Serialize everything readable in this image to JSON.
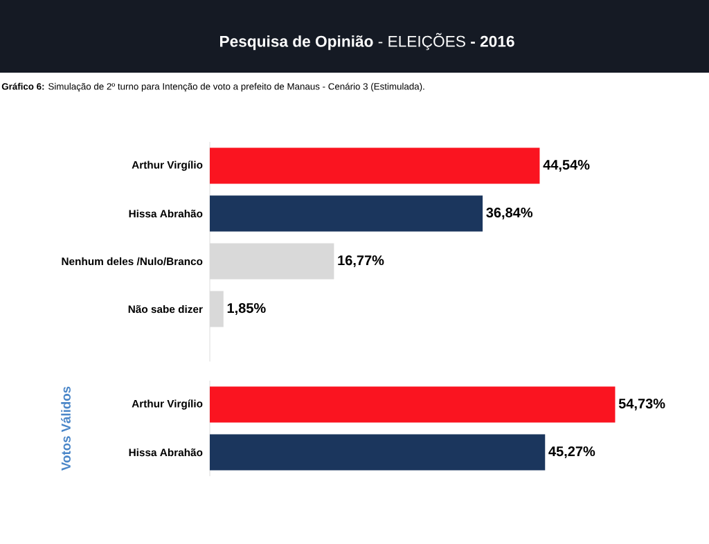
{
  "chart_data": [
    {
      "type": "bar",
      "orientation": "horizontal",
      "title": "**Pesquisa de Opinião** - ELEIÇÕES **- 2016**",
      "subtitle": "**Gráfico 6:** Simulação de 2º turno para Intenção de voto a prefeito de Manaus - Cenário 3 (Estimulada).",
      "categories": [
        "Arthur Virgílio",
        "Hissa Abrahão",
        "Nenhum deles /Nulo/Branco",
        "Não sabe dizer"
      ],
      "values": [
        44.54,
        36.84,
        16.77,
        1.85
      ],
      "colors": [
        "#fa1420",
        "#1b365d",
        "#d9d9d9",
        "#d9d9d9"
      ],
      "value_labels": [
        "44,54%",
        "36,84%",
        "16,77%",
        "1,85%"
      ]
    },
    {
      "type": "bar",
      "orientation": "horizontal",
      "ylabel": "Votos Válidos",
      "categories": [
        "Arthur Virgílio",
        "Hissa Abrahão"
      ],
      "values": [
        54.73,
        45.27
      ],
      "colors": [
        "#fa1420",
        "#1b365d"
      ],
      "value_labels": [
        "54,73%",
        "45,27%"
      ]
    }
  ]
}
